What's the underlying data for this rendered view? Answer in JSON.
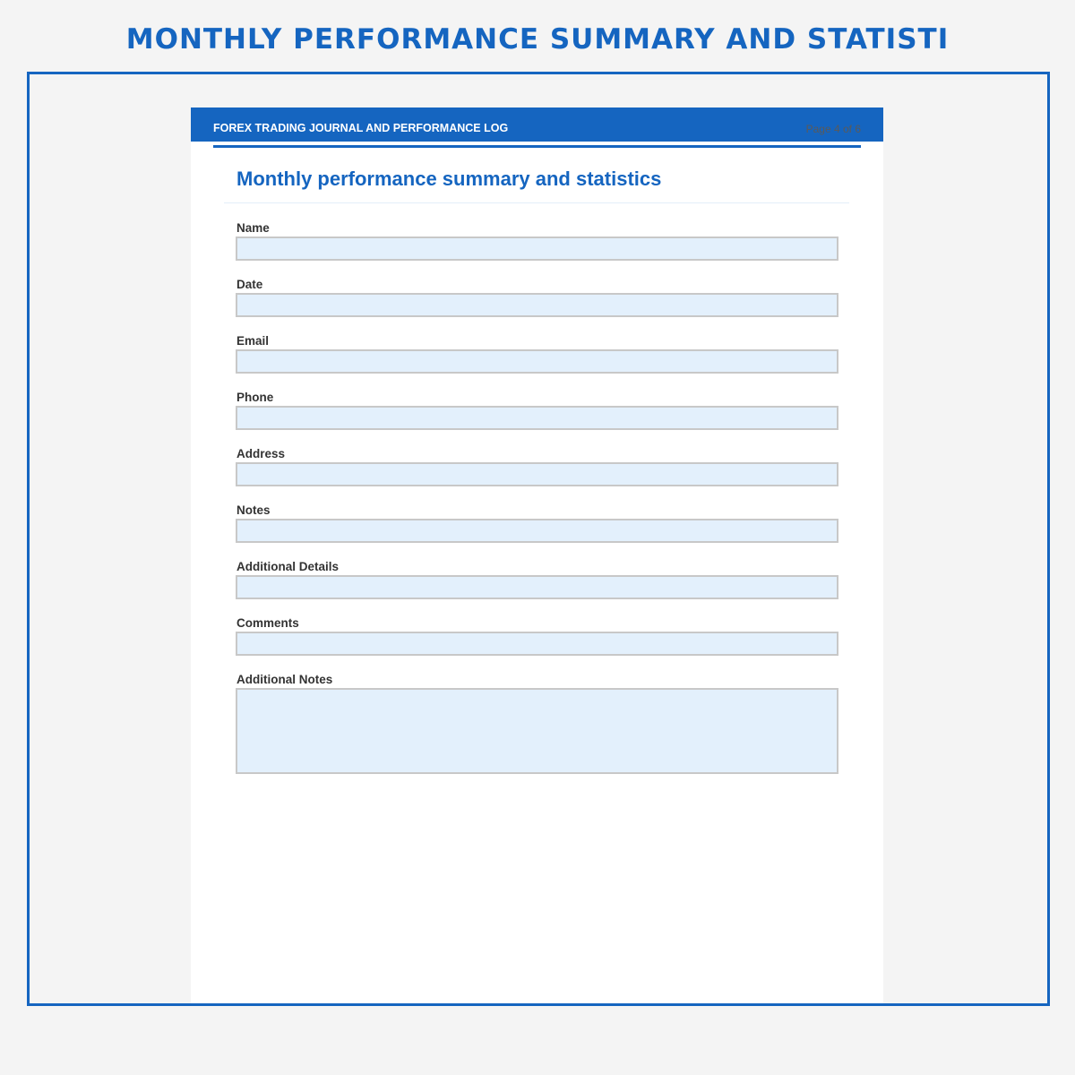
{
  "banner_title": "MONTHLY PERFORMANCE SUMMARY AND STATISTI",
  "header": {
    "title": "FOREX TRADING JOURNAL AND PERFORMANCE LOG",
    "page": "Page 4 of 6"
  },
  "form": {
    "title": "Monthly performance summary and statistics",
    "fields": [
      {
        "label": "Name",
        "value": ""
      },
      {
        "label": "Date",
        "value": ""
      },
      {
        "label": "Email",
        "value": ""
      },
      {
        "label": "Phone",
        "value": ""
      },
      {
        "label": "Address",
        "value": ""
      },
      {
        "label": "Notes",
        "value": ""
      },
      {
        "label": "Additional Details",
        "value": ""
      },
      {
        "label": "Comments",
        "value": ""
      },
      {
        "label": "Additional Notes",
        "value": ""
      }
    ]
  },
  "colors": {
    "accent": "#1565c0",
    "field_bg": "#e3f0fc"
  }
}
